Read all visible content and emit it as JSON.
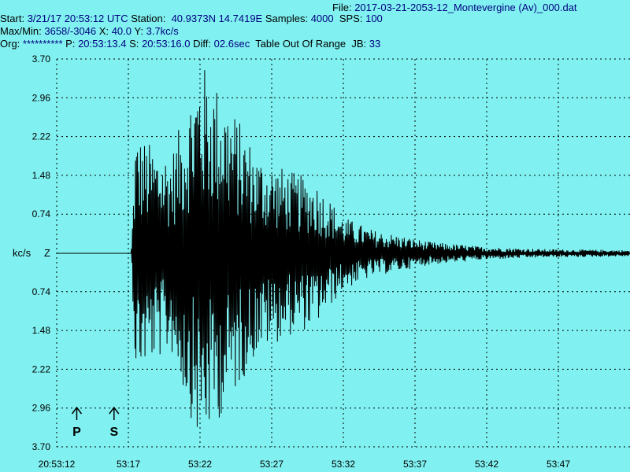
{
  "header": {
    "file_label": "File:",
    "file_value": "2017-03-21-2053-12_Montevergine (Av)_000.dat",
    "start_label": "Start:",
    "start_value": "3/21/17 20:53:12 UTC",
    "station_label": "Station:",
    "station_value": "40.9373N 14.7419E",
    "samples_label": "Samples:",
    "samples_value": "4000",
    "sps_label": "SPS:",
    "sps_value": "100",
    "maxmin_label": "Max/Min:",
    "maxmin_value": "3658/-3046",
    "x_label": "X:",
    "x_value": "40.0",
    "y_label": "Y:",
    "y_value": "3.7kc/s",
    "org_label": "Org:",
    "org_value": "**********",
    "p_label": "P:",
    "p_value": "20:53:13.4",
    "s_label": "S:",
    "s_value": "20:53:16.0",
    "diff_label": "Diff:",
    "diff_value": "02.6sec",
    "table_text": "Table Out Of Range",
    "jb_label": "JB:",
    "jb_value": "33"
  },
  "colors": {
    "background": "#80f0f0",
    "trace": "#000000",
    "grid": "#000000",
    "header_value": "#000080"
  },
  "chart_data": {
    "type": "line",
    "title": "",
    "xlabel": "",
    "ylabel": "kc/s",
    "channel": "Z",
    "x_ticks": [
      "20:53:12",
      "53:17",
      "53:22",
      "53:27",
      "53:32",
      "53:37",
      "53:42",
      "53:47"
    ],
    "y_tick_labels": [
      "3.70",
      "2.96",
      "2.22",
      "1.48",
      "0.74",
      "",
      "0.74",
      "1.48",
      "2.22",
      "2.96",
      "3.70"
    ],
    "ylim": [
      -3.7,
      3.7
    ],
    "x_range_seconds": [
      0,
      40
    ],
    "grid": true,
    "phase_markers": [
      {
        "label": "P",
        "time_s": 1.4
      },
      {
        "label": "S",
        "time_s": 4.0
      }
    ],
    "trace_envelope": {
      "units": "kc/s",
      "points": [
        {
          "t": 0.0,
          "amp": 0.0
        },
        {
          "t": 5.2,
          "amp": 0.0
        },
        {
          "t": 5.5,
          "amp": 2.3
        },
        {
          "t": 6.5,
          "amp": 2.1
        },
        {
          "t": 8.0,
          "amp": 1.9
        },
        {
          "t": 10.0,
          "amp": 3.7
        },
        {
          "t": 12.0,
          "amp": 2.9
        },
        {
          "t": 14.0,
          "amp": 1.9
        },
        {
          "t": 16.0,
          "amp": 1.6
        },
        {
          "t": 18.0,
          "amp": 1.4
        },
        {
          "t": 20.0,
          "amp": 0.7
        },
        {
          "t": 22.0,
          "amp": 0.45
        },
        {
          "t": 26.0,
          "amp": 0.22
        },
        {
          "t": 30.0,
          "amp": 0.12
        },
        {
          "t": 34.0,
          "amp": 0.08
        },
        {
          "t": 40.0,
          "amp": 0.06
        }
      ]
    }
  }
}
